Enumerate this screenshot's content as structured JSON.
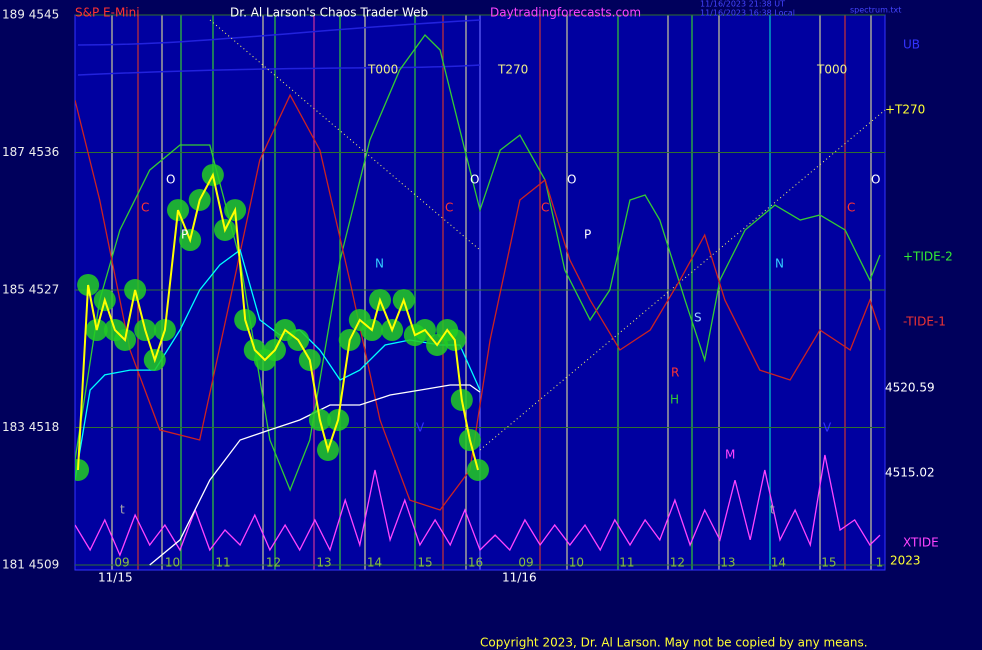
{
  "chart_data": {
    "type": "line",
    "title": "Dr. Al Larson's Chaos Trader Web",
    "instrument": "S&P E-Mini",
    "site": "Daytradingforecasts.com",
    "timestamps": [
      "11/16/2023 21:38 UT",
      "11/16/2023 16:38 Local"
    ],
    "file": "spectrum.txt",
    "copyright": "Copyright 2023, Dr. Al Larson. May not be copied by any means.",
    "categories": [
      "09",
      "10",
      "11",
      "12",
      "13",
      "14",
      "15",
      "16",
      "09",
      "10",
      "11",
      "12",
      "13",
      "14",
      "15",
      "1"
    ],
    "dates": [
      "11/15",
      "11/16"
    ],
    "xlim": [
      -0.93,
      15.11
    ],
    "ylim": [
      4509,
      4545
    ],
    "yticks": [
      {
        "value": 4509,
        "label": "181 4509"
      },
      {
        "value": 4518,
        "label": "183 4518"
      },
      {
        "value": 4527,
        "label": "185 4527"
      },
      {
        "value": 4536,
        "label": "187 4536"
      },
      {
        "value": 4545,
        "label": "189 4545"
      }
    ],
    "grid": true,
    "value_markers": [
      4520.59,
      4515.02
    ],
    "annotations": [
      "T000",
      "T270",
      "T000",
      "O",
      "O",
      "O",
      "O",
      "C",
      "C",
      "C",
      "C",
      "P",
      "P",
      "N",
      "N",
      "S",
      "R",
      "H",
      "M",
      "V",
      "V",
      "t",
      "t",
      "UB",
      "+T270",
      "2023"
    ],
    "series": [
      {
        "color": "#33cc33",
        "name": "+TIDE-2",
        "x": [
          -0.93,
          -0.44,
          -0.04,
          0.55,
          1.15,
          1.74,
          2.34,
          2.93,
          3.33,
          3.72,
          4.32,
          4.91,
          5.5,
          6.0,
          6.3,
          6.79,
          7.09,
          7.49,
          7.88,
          8.38,
          8.77,
          9.27,
          9.66,
          10.06,
          10.36,
          10.65,
          11.15,
          11.54,
          11.84,
          12.34,
          12.93,
          13.43,
          13.82,
          14.32,
          14.81,
          15.01
        ],
        "values": [
          4515.87,
          4526.34,
          4530.93,
          4534.85,
          4536.49,
          4536.49,
          4528.96,
          4517.18,
          4513.91,
          4517.18,
          4528.96,
          4536.82,
          4541.4,
          4543.69,
          4542.71,
          4536.16,
          4532.23,
          4536.16,
          4537.14,
          4534.2,
          4528.31,
          4525.04,
          4527.0,
          4532.89,
          4533.22,
          4531.58,
          4526.34,
          4522.42,
          4527.65,
          4530.93,
          4532.56,
          4531.58,
          4531.91,
          4530.93,
          4527.65,
          4529.29
        ]
      },
      {
        "color": "#cc2222",
        "name": "-TIDE-1",
        "x": [
          -0.93,
          -0.44,
          0.16,
          0.75,
          1.54,
          2.14,
          2.73,
          3.33,
          3.92,
          4.51,
          5.11,
          5.7,
          6.3,
          6.89,
          7.29,
          7.88,
          8.38,
          8.87,
          9.27,
          9.86,
          10.46,
          11.05,
          11.54,
          11.94,
          12.63,
          13.23,
          13.82,
          14.42,
          14.81,
          15.01
        ],
        "values": [
          4539.43,
          4532.89,
          4523.07,
          4517.84,
          4517.18,
          4526.34,
          4535.51,
          4539.76,
          4536.16,
          4527.65,
          4518.49,
          4513.25,
          4512.6,
          4515.22,
          4523.73,
          4532.89,
          4534.2,
          4528.96,
          4526.34,
          4523.07,
          4524.38,
          4527.65,
          4530.6,
          4526.34,
          4521.76,
          4521.11,
          4524.38,
          4523.07,
          4526.34,
          4524.38
        ]
      },
      {
        "color": "#ff44ff",
        "name": "XTIDE",
        "x": [
          -0.93,
          -0.63,
          -0.34,
          -0.04,
          0.26,
          0.55,
          0.85,
          1.15,
          1.45,
          1.74,
          2.04,
          2.34,
          2.63,
          2.93,
          3.23,
          3.52,
          3.82,
          4.12,
          4.42,
          4.71,
          5.01,
          5.31,
          5.6,
          5.9,
          6.2,
          6.5,
          6.79,
          7.09,
          7.39,
          7.68,
          7.98,
          8.28,
          8.57,
          8.87,
          9.17,
          9.47,
          9.76,
          10.06,
          10.36,
          10.65,
          10.95,
          11.25,
          11.54,
          11.84,
          12.14,
          12.44,
          12.73,
          13.03,
          13.33,
          13.63,
          13.92,
          14.22,
          14.51,
          14.81,
          15.01
        ],
        "values": [
          4511.62,
          4509.98,
          4511.95,
          4509.65,
          4512.27,
          4510.31,
          4511.62,
          4509.98,
          4512.6,
          4509.98,
          4511.29,
          4510.31,
          4512.27,
          4509.98,
          4511.62,
          4509.98,
          4511.95,
          4509.98,
          4513.25,
          4510.31,
          4515.22,
          4510.64,
          4513.25,
          4510.31,
          4511.95,
          4510.31,
          4512.6,
          4509.98,
          4510.96,
          4509.98,
          4511.95,
          4510.31,
          4511.62,
          4510.31,
          4511.62,
          4509.98,
          4511.95,
          4510.31,
          4511.95,
          4510.64,
          4513.25,
          4510.31,
          4512.6,
          4510.64,
          4514.56,
          4510.64,
          4515.22,
          4510.64,
          4512.6,
          4510.31,
          4516.2,
          4511.29,
          4511.95,
          4510.31,
          4510.96
        ]
      },
      {
        "color": "#ffffff",
        "x": [
          0.55,
          1.15,
          1.74,
          2.34,
          2.93,
          3.52,
          4.12,
          4.71,
          5.31,
          5.9,
          6.5,
          6.89,
          7.09
        ],
        "values": [
          4509.0,
          4510.64,
          4514.56,
          4517.18,
          4517.84,
          4518.49,
          4519.47,
          4519.47,
          4520.13,
          4520.45,
          4520.78,
          4520.78,
          4520.32
        ]
      },
      {
        "color": "#00ffff",
        "x": [
          -0.93,
          -0.63,
          -0.34,
          0.16,
          0.65,
          1.15,
          1.54,
          1.94,
          2.34,
          2.73,
          3.13,
          3.52,
          3.92,
          4.32,
          4.71,
          5.21,
          5.7,
          6.3,
          6.69,
          7.09
        ],
        "values": [
          4514.56,
          4520.45,
          4521.44,
          4521.76,
          4521.76,
          4524.38,
          4527.0,
          4528.64,
          4529.62,
          4525.04,
          4524.05,
          4524.38,
          4523.07,
          4521.11,
          4521.76,
          4523.4,
          4523.73,
          4523.4,
          4523.4,
          4520.45
        ]
      },
      {
        "color": "#ffff00",
        "bubbles": "#22cc22",
        "x": [
          -0.87,
          -0.67,
          -0.5,
          -0.34,
          -0.14,
          0.06,
          0.26,
          0.46,
          0.65,
          0.85,
          1.11,
          1.35,
          1.54,
          1.8,
          2.04,
          2.24,
          2.44,
          2.63,
          2.83,
          3.03,
          3.23,
          3.49,
          3.72,
          3.92,
          4.08,
          4.28,
          4.51,
          4.71,
          4.95,
          5.11,
          5.35,
          5.58,
          5.8,
          6.0,
          6.24,
          6.44,
          6.59,
          6.73,
          6.89,
          7.05
        ],
        "values": [
          4515.22,
          4527.33,
          4524.38,
          4526.34,
          4524.38,
          4523.73,
          4527.0,
          4524.38,
          4522.42,
          4524.38,
          4532.23,
          4530.27,
          4532.89,
          4534.53,
          4530.93,
          4532.23,
          4525.04,
          4523.07,
          4522.42,
          4523.07,
          4524.38,
          4523.73,
          4522.42,
          4518.49,
          4516.53,
          4518.49,
          4523.73,
          4525.04,
          4524.38,
          4526.34,
          4524.38,
          4526.34,
          4524.05,
          4524.38,
          4523.4,
          4524.38,
          4523.73,
          4519.8,
          4517.18,
          4515.22
        ]
      }
    ]
  }
}
